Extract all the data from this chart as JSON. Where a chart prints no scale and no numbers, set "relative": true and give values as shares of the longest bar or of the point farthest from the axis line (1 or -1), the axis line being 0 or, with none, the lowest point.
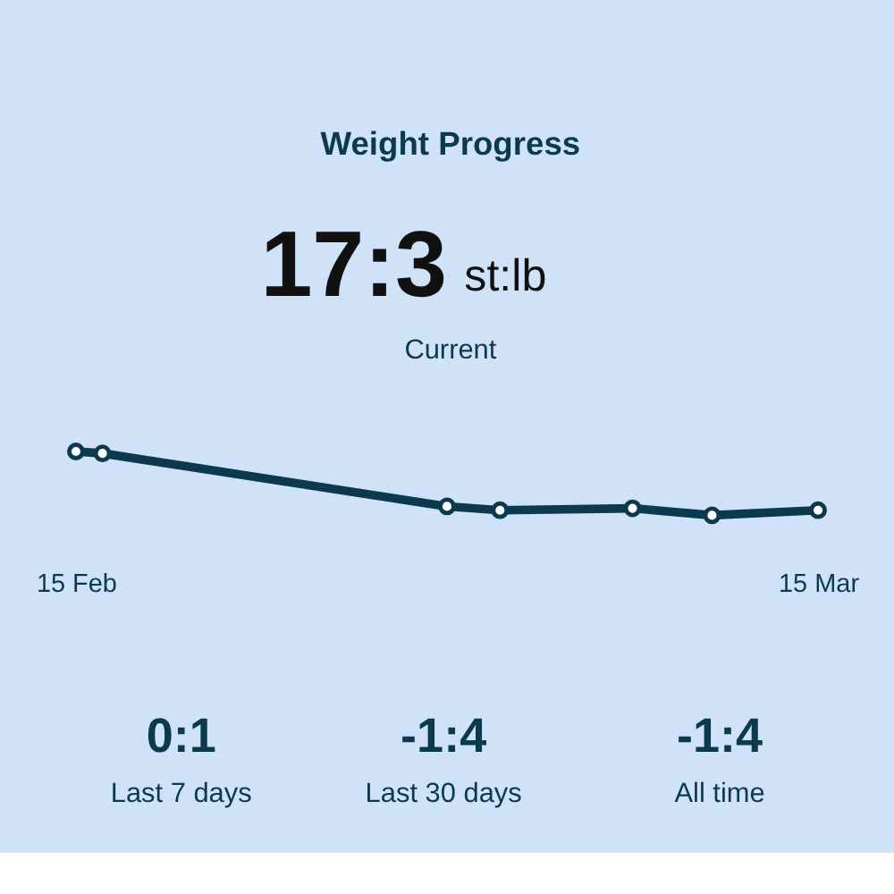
{
  "chart_data": {
    "type": "line",
    "title": "Weight Progress",
    "relative": true,
    "x": [
      "--02-15",
      "--02-16",
      "--03-01",
      "--03-03",
      "--03-08",
      "--03-11",
      "--03-15"
    ],
    "xticks": [
      {
        "value": "--02-15",
        "label": "15 Feb"
      },
      {
        "value": "--03-15",
        "label": "15 Mar"
      }
    ],
    "series": [
      {
        "color": "#0b3a4f",
        "values": [
          1,
          0.97,
          0.14,
          0.08,
          0.11,
          0,
          0.08
        ]
      }
    ],
    "xlim": [
      "--02-15",
      "--03-15"
    ],
    "marker": "circle",
    "line_style": "solid",
    "grid": false,
    "tick_labels": "x",
    "annotations": [
      "17:3",
      "st:lb",
      "Current",
      "0:1",
      "Last 7 days",
      "-1:4",
      "Last 30 days",
      "-1:4",
      "All time"
    ]
  }
}
